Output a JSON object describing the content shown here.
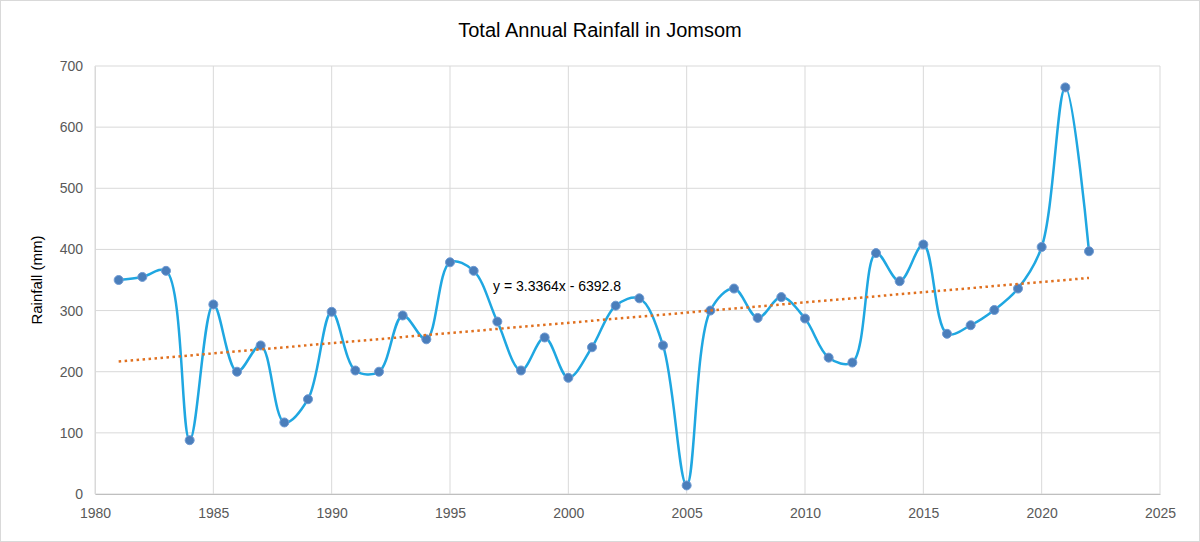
{
  "chart_data": {
    "type": "line",
    "title": "Total Annual Rainfall in Jomsom",
    "y_label": "Rainfall (mm)",
    "annotations": [
      "y = 3.3364x - 6392.8"
    ],
    "x": [
      1981,
      1982,
      1983,
      1984,
      1985,
      1986,
      1987,
      1988,
      1989,
      1990,
      1991,
      1992,
      1993,
      1994,
      1995,
      1996,
      1997,
      1998,
      1999,
      2000,
      2001,
      2002,
      2003,
      2004,
      2005,
      2006,
      2007,
      2008,
      2009,
      2010,
      2011,
      2012,
      2013,
      2014,
      2015,
      2016,
      2017,
      2018,
      2019,
      2020,
      2021,
      2022
    ],
    "series": [
      {
        "type": "line",
        "color": "#1fa7e1",
        "marker": "circle",
        "line_style": "smooth",
        "values": [
          350,
          355,
          365,
          88,
          310,
          200,
          243,
          117,
          155,
          298,
          202,
          200,
          292,
          253,
          379,
          365,
          282,
          202,
          256,
          190,
          240,
          308,
          320,
          243,
          14,
          300,
          336,
          288,
          322,
          287,
          223,
          215,
          394,
          348,
          408,
          262,
          276,
          301,
          336,
          404,
          665,
          397
        ]
      },
      {
        "type": "line",
        "color": "#e0701f",
        "marker": "none",
        "line_style": "dotted",
        "x": [
          1981,
          2022
        ],
        "values": [
          216.6,
          353.4
        ]
      }
    ],
    "xlim": [
      1980,
      2025
    ],
    "xticks": [
      1980,
      1985,
      1990,
      1995,
      2000,
      2005,
      2010,
      2015,
      2020,
      2025
    ],
    "ylim": [
      0,
      700
    ],
    "yticks": [
      0,
      100,
      200,
      300,
      400,
      500,
      600,
      700
    ],
    "grid": true
  }
}
